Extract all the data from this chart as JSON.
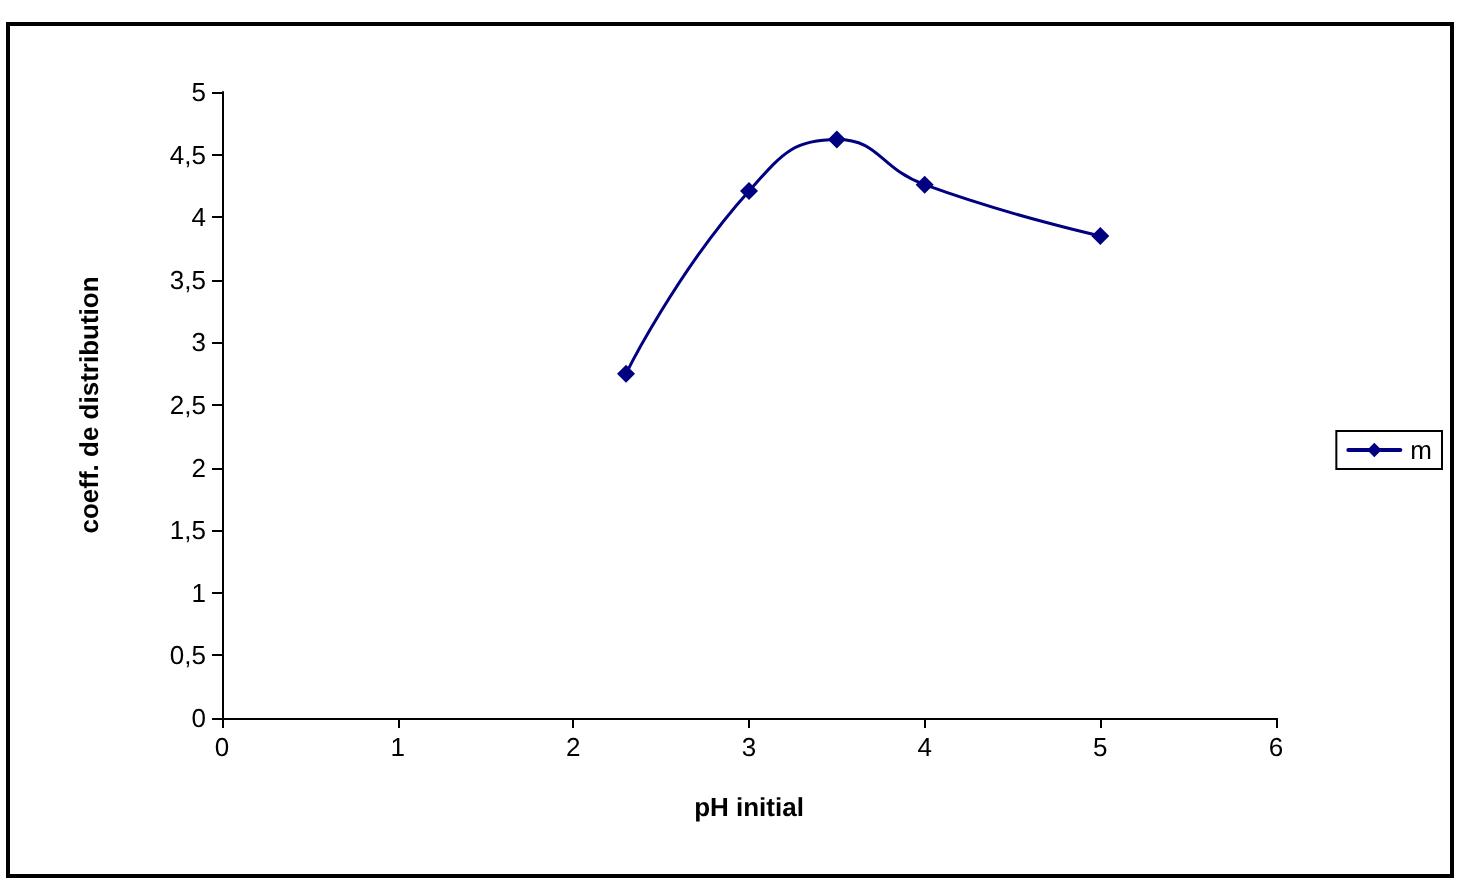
{
  "chart_data": {
    "type": "line",
    "xlabel": "pH initial",
    "ylabel": "coeff. de distribution",
    "series": [
      {
        "name": "m",
        "color": "#000080",
        "x": [
          2.3,
          3,
          3.5,
          4,
          5
        ],
        "values": [
          2.75,
          4.21,
          4.62,
          4.26,
          3.85
        ]
      }
    ],
    "xlim": [
      0,
      6
    ],
    "xticks": [
      0,
      1,
      2,
      3,
      4,
      5,
      6
    ],
    "ylim": [
      0,
      5
    ],
    "yticks": [
      0,
      {
        "value": 0.5,
        "label": "0,5"
      },
      1,
      {
        "value": 1.5,
        "label": "1,5"
      },
      2,
      {
        "value": 2.5,
        "label": "2,5"
      },
      3,
      {
        "value": 3.5,
        "label": "3,5"
      },
      4,
      {
        "value": 4.5,
        "label": "4,5"
      },
      5
    ],
    "grid": false,
    "legend": "right",
    "marker": "diamond",
    "line_style": "solid"
  }
}
